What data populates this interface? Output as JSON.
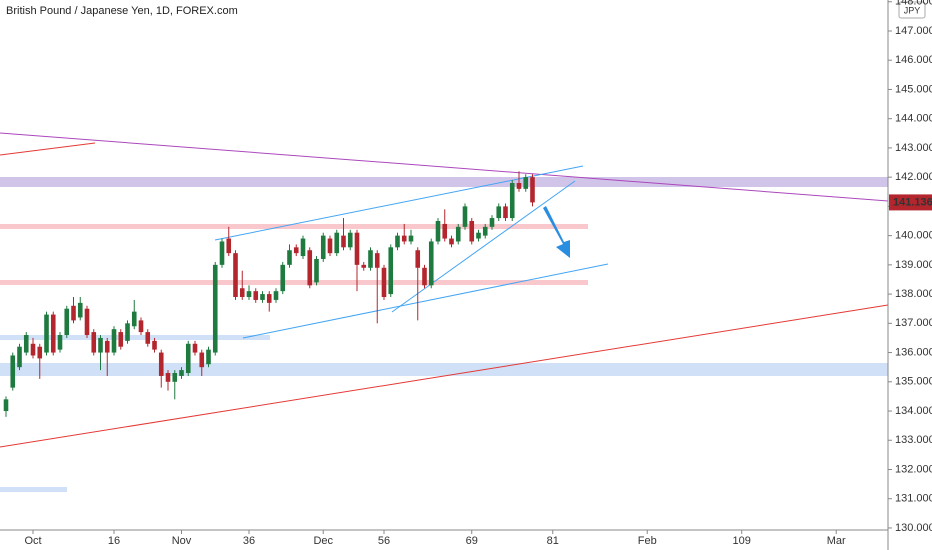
{
  "chart_data": {
    "type": "candlestick",
    "title": "British Pound / Japanese Yen, 1D, FOREX.com",
    "currency": "JPY",
    "x": [
      0,
      1,
      2,
      3,
      4,
      5,
      6,
      7,
      8,
      9,
      10,
      11,
      12,
      13,
      14,
      15,
      16,
      17,
      18,
      19,
      20,
      21,
      22,
      23,
      24,
      25,
      26,
      27,
      28,
      29,
      30,
      31,
      32,
      33,
      34,
      35,
      36,
      37,
      38,
      39,
      40,
      41,
      42,
      43,
      44,
      45,
      46,
      47,
      48,
      49,
      50,
      51,
      52,
      53,
      54,
      55,
      56,
      57,
      58,
      59,
      60,
      61,
      62,
      63,
      64,
      65,
      66,
      67,
      68,
      69,
      70,
      71,
      72,
      73,
      74,
      75,
      76,
      77,
      78
    ],
    "open": [
      134.0,
      134.8,
      135.5,
      136.0,
      136.3,
      136.2,
      136.0,
      137.3,
      136.1,
      136.6,
      137.6,
      137.2,
      137.5,
      136.7,
      136.0,
      136.4,
      136.0,
      136.7,
      136.4,
      136.9,
      137.1,
      136.7,
      136.4,
      136.0,
      135.3,
      135.0,
      135.2,
      135.3,
      136.3,
      136.0,
      135.6,
      136.0,
      139.0,
      139.9,
      139.4,
      138.2,
      137.9,
      138.1,
      137.8,
      138.0,
      137.8,
      138.1,
      139.0,
      139.6,
      139.3,
      139.5,
      138.4,
      139.2,
      139.9,
      139.4,
      140.0,
      139.6,
      140.1,
      139.0,
      138.9,
      139.4,
      138.9,
      138.0,
      139.6,
      140.0,
      139.8,
      139.5,
      138.9,
      138.3,
      139.8,
      140.4,
      139.9,
      139.8,
      140.3,
      140.5,
      139.9,
      140.0,
      140.3,
      140.6,
      141.0,
      140.6,
      141.8,
      141.6,
      142.0
    ],
    "high": [
      134.5,
      136.0,
      136.3,
      136.7,
      136.5,
      136.3,
      137.4,
      137.4,
      136.7,
      137.6,
      137.9,
      137.9,
      137.6,
      136.8,
      136.6,
      136.5,
      136.9,
      136.8,
      137.1,
      137.8,
      137.2,
      136.8,
      136.5,
      136.1,
      135.4,
      135.4,
      135.5,
      136.4,
      136.4,
      136.1,
      136.2,
      139.1,
      139.9,
      140.3,
      139.5,
      138.8,
      138.3,
      138.2,
      138.1,
      138.1,
      138.2,
      139.1,
      139.7,
      139.7,
      140.0,
      139.6,
      139.3,
      140.1,
      140.0,
      140.2,
      140.6,
      140.2,
      140.2,
      139.1,
      139.6,
      139.5,
      139.0,
      139.7,
      140.1,
      140.4,
      140.2,
      139.6,
      139.0,
      139.9,
      140.6,
      140.9,
      140.0,
      140.4,
      141.1,
      140.6,
      140.2,
      140.4,
      140.7,
      141.1,
      141.1,
      141.9,
      142.2,
      142.1,
      142.1
    ],
    "low": [
      133.8,
      134.7,
      135.4,
      135.9,
      135.8,
      135.1,
      135.9,
      135.9,
      136.0,
      136.5,
      137.0,
      137.1,
      136.5,
      135.9,
      135.4,
      135.2,
      135.9,
      136.1,
      136.3,
      136.8,
      136.6,
      136.2,
      136.0,
      134.8,
      134.7,
      134.4,
      135.1,
      135.2,
      135.9,
      135.2,
      135.5,
      135.9,
      138.9,
      139.3,
      137.8,
      137.8,
      137.8,
      137.7,
      137.7,
      137.4,
      137.7,
      138.0,
      138.9,
      139.3,
      139.2,
      138.2,
      138.3,
      139.1,
      139.3,
      139.3,
      139.5,
      139.5,
      138.1,
      138.8,
      138.8,
      137.0,
      137.8,
      137.9,
      139.5,
      139.7,
      139.7,
      137.1,
      138.2,
      138.2,
      139.7,
      139.8,
      139.6,
      139.7,
      140.2,
      139.7,
      139.8,
      139.9,
      140.2,
      140.5,
      140.5,
      140.5,
      141.5,
      141.5,
      141.0
    ],
    "close": [
      134.4,
      135.9,
      136.2,
      136.6,
      135.9,
      135.8,
      137.3,
      136.0,
      136.6,
      137.5,
      137.1,
      137.7,
      136.6,
      136.0,
      136.5,
      136.0,
      136.8,
      136.2,
      137.0,
      137.4,
      136.7,
      136.3,
      136.1,
      135.2,
      135.0,
      135.3,
      135.4,
      136.3,
      136.0,
      135.5,
      136.1,
      139.0,
      139.8,
      139.4,
      137.9,
      137.9,
      138.1,
      137.8,
      138.0,
      137.7,
      138.1,
      139.0,
      139.5,
      139.4,
      139.9,
      138.3,
      139.2,
      140.0,
      139.4,
      140.1,
      139.6,
      140.1,
      139.0,
      138.9,
      139.5,
      138.9,
      137.9,
      139.6,
      140.0,
      139.8,
      140.0,
      138.9,
      138.3,
      139.8,
      140.5,
      139.9,
      139.7,
      140.3,
      141.0,
      139.8,
      140.1,
      140.3,
      140.6,
      141.0,
      140.6,
      141.8,
      141.6,
      142.0,
      141.136
    ],
    "up_color": "#1f7a3f",
    "down_color": "#b3262e",
    "xlim": [
      -0.89,
      130.67
    ],
    "xticks": [
      {
        "value": 4,
        "label": "Oct"
      },
      16,
      {
        "value": 26,
        "label": "Nov"
      },
      36,
      {
        "value": 47,
        "label": "Dec"
      },
      56,
      69,
      81,
      {
        "value": 95,
        "label": "Feb"
      },
      109,
      {
        "value": 123,
        "label": "Mar"
      }
    ],
    "ylim": [
      129.93,
      148.06
    ],
    "yticks": [
      {
        "value": 130,
        "label": "130.000"
      },
      {
        "value": 131,
        "label": "131.000"
      },
      {
        "value": 132,
        "label": "132.000"
      },
      {
        "value": 133,
        "label": "133.000"
      },
      {
        "value": 134,
        "label": "134.000"
      },
      {
        "value": 135,
        "label": "135.000"
      },
      {
        "value": 136,
        "label": "136.000"
      },
      {
        "value": 137,
        "label": "137.000"
      },
      {
        "value": 138,
        "label": "138.000"
      },
      {
        "value": 139,
        "label": "139.000"
      },
      {
        "value": 140,
        "label": "140.000"
      },
      {
        "value": 141,
        "label": "141.000"
      },
      {
        "value": 142,
        "label": "142.000"
      },
      {
        "value": 143,
        "label": "143.000"
      },
      {
        "value": 144,
        "label": "144.000"
      },
      {
        "value": 145,
        "label": "145.000"
      },
      {
        "value": 146,
        "label": "146.000"
      },
      {
        "value": 147,
        "label": "147.000"
      },
      {
        "value": 148,
        "label": "148.000"
      }
    ]
  }
}
